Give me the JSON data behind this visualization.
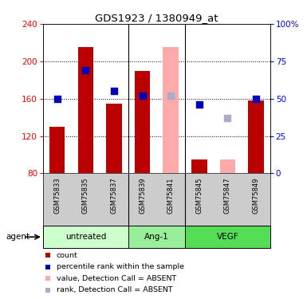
{
  "title": "GDS1923 / 1380949_at",
  "samples": [
    "GSM75833",
    "GSM75835",
    "GSM75837",
    "GSM75839",
    "GSM75841",
    "GSM75845",
    "GSM75847",
    "GSM75849"
  ],
  "bar_values": [
    130,
    215,
    155,
    190,
    null,
    95,
    null,
    158
  ],
  "bar_absent_values": [
    null,
    null,
    null,
    null,
    215,
    null,
    95,
    null
  ],
  "rank_values_pct": [
    50,
    69,
    55,
    52,
    null,
    46,
    null,
    50
  ],
  "rank_absent_values_pct": [
    null,
    null,
    null,
    null,
    52,
    null,
    37,
    null
  ],
  "bar_color": "#bb0000",
  "bar_absent_color": "#ffaaaa",
  "rank_color": "#0000bb",
  "rank_absent_color": "#aaaacc",
  "ylim_left": [
    80,
    240
  ],
  "ylim_right": [
    0,
    100
  ],
  "yticks_left": [
    80,
    120,
    160,
    200,
    240
  ],
  "yticks_right": [
    0,
    25,
    50,
    75,
    100
  ],
  "yticklabels_right": [
    "0",
    "25",
    "50",
    "75",
    "100%"
  ],
  "group_boundaries": [
    [
      0,
      2,
      "untreated",
      "#ccffcc"
    ],
    [
      3,
      4,
      "Ang-1",
      "#99ee99"
    ],
    [
      5,
      7,
      "VEGF",
      "#55dd55"
    ]
  ],
  "agent_label": "agent",
  "background_color": "#ffffff",
  "sample_bg_color": "#cccccc",
  "bar_width": 0.55,
  "rank_marker_size": 40,
  "legend_items": [
    [
      "#bb0000",
      "count"
    ],
    [
      "#0000bb",
      "percentile rank within the sample"
    ],
    [
      "#ffaaaa",
      "value, Detection Call = ABSENT"
    ],
    [
      "#aaaacc",
      "rank, Detection Call = ABSENT"
    ]
  ]
}
